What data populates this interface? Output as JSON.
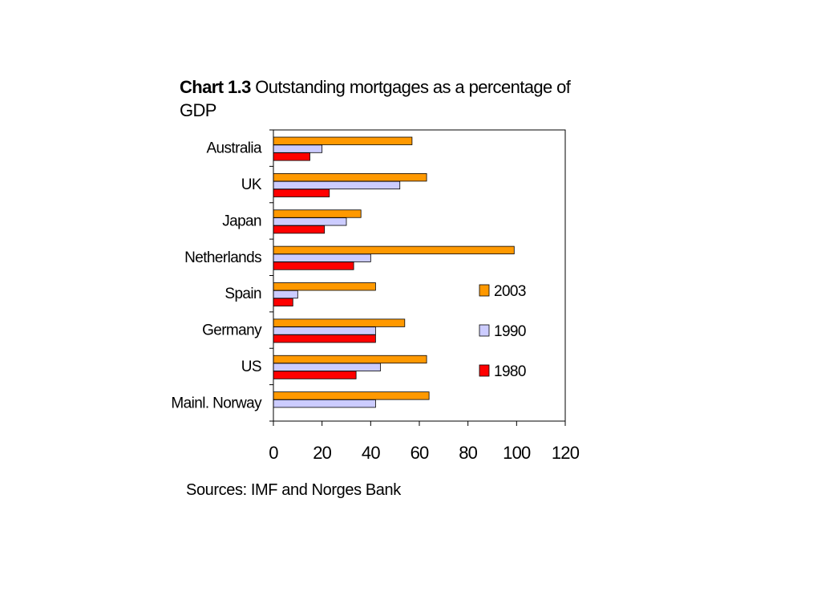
{
  "title": {
    "prefix": "Chart 1.3",
    "text": "Outstanding mortgages as a percentage of GDP"
  },
  "source": "Sources: IMF and Norges Bank",
  "chart_data": {
    "type": "bar",
    "orientation": "horizontal",
    "categories": [
      "Australia",
      "UK",
      "Japan",
      "Netherlands",
      "Spain",
      "Germany",
      "US",
      "Mainl. Norway"
    ],
    "series": [
      {
        "name": "2003",
        "color": "#ff9900",
        "values": [
          57,
          63,
          36,
          99,
          42,
          54,
          63,
          64
        ]
      },
      {
        "name": "1990",
        "color": "#ccccff",
        "values": [
          20,
          52,
          30,
          40,
          10,
          42,
          44,
          42
        ]
      },
      {
        "name": "1980",
        "color": "#ff0000",
        "values": [
          15,
          23,
          21,
          33,
          8,
          42,
          34,
          null
        ]
      }
    ],
    "xlim": [
      0,
      120
    ],
    "xticks": [
      "0",
      "20",
      "40",
      "60",
      "80",
      "100",
      "120"
    ],
    "legend": "right",
    "grid": false
  }
}
